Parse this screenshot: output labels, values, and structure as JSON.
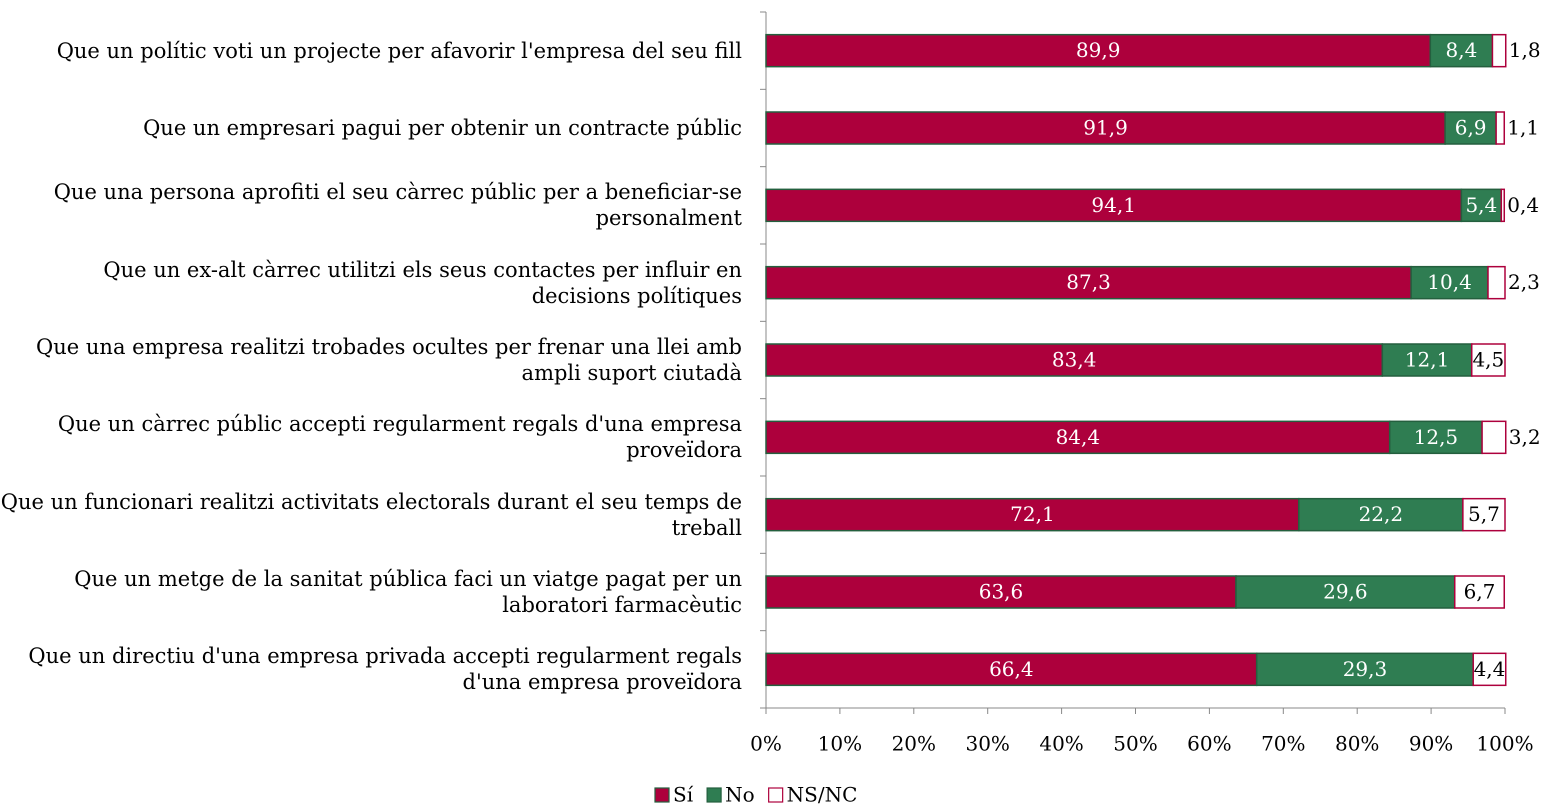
{
  "chart_data": {
    "type": "stacked_bar_horizontal",
    "categories": [
      "Que un polític voti un projecte per afavorir l'empresa del seu fill",
      "Que un empresari pagui per obtenir un contracte públic",
      "Que una persona aprofiti el seu càrrec públic per a beneficiar-se personalment",
      "Que un ex-alt càrrec utilitzi els seus contactes per influir en decisions polítiques",
      "Que una empresa realitzi trobades ocultes per frenar una llei amb ampli suport ciutadà",
      "Que un càrrec públic accepti regularment regals d'una empresa proveïdora",
      "Que un funcionari realitzi activitats electorals durant el seu temps de treball",
      "Que un metge de la sanitat pública faci un viatge pagat per un laboratori farmacèutic",
      "Que un directiu d'una empresa privada accepti regularment regals d'una empresa proveïdora"
    ],
    "series": [
      {
        "name": "Sí",
        "color": "#ad003c",
        "values": [
          89.9,
          91.9,
          94.1,
          87.3,
          83.4,
          84.4,
          72.1,
          63.6,
          66.4
        ],
        "value_labels": [
          "89,9",
          "91,9",
          "94,1",
          "87,3",
          "83,4",
          "84,4",
          "72,1",
          "63,6",
          "66,4"
        ]
      },
      {
        "name": "No",
        "color": "#2f7d52",
        "values": [
          8.4,
          6.9,
          5.4,
          10.4,
          12.1,
          12.5,
          22.2,
          29.6,
          29.3
        ],
        "value_labels": [
          "8,4",
          "6,9",
          "5,4",
          "10,4",
          "12,1",
          "12,5",
          "22,2",
          "29,6",
          "29,3"
        ]
      },
      {
        "name": "NS/NC",
        "color": "#ffffff",
        "values": [
          1.8,
          1.1,
          0.4,
          2.3,
          4.5,
          3.2,
          5.7,
          6.7,
          4.4
        ],
        "value_labels": [
          "1,8",
          "1,1",
          "0,4",
          "2,3",
          "4,5",
          "3,2",
          "5,7",
          "6,7",
          "4,4"
        ]
      }
    ],
    "xlim": [
      0,
      100
    ],
    "xticks": [
      {
        "value": 0,
        "label": "0%"
      },
      {
        "value": 10,
        "label": "10%"
      },
      {
        "value": 20,
        "label": "20%"
      },
      {
        "value": 30,
        "label": "30%"
      },
      {
        "value": 40,
        "label": "40%"
      },
      {
        "value": 50,
        "label": "50%"
      },
      {
        "value": 60,
        "label": "60%"
      },
      {
        "value": 70,
        "label": "70%"
      },
      {
        "value": 80,
        "label": "80%"
      },
      {
        "value": 90,
        "label": "90%"
      },
      {
        "value": 100,
        "label": "100%"
      }
    ],
    "legend": "bottom"
  }
}
